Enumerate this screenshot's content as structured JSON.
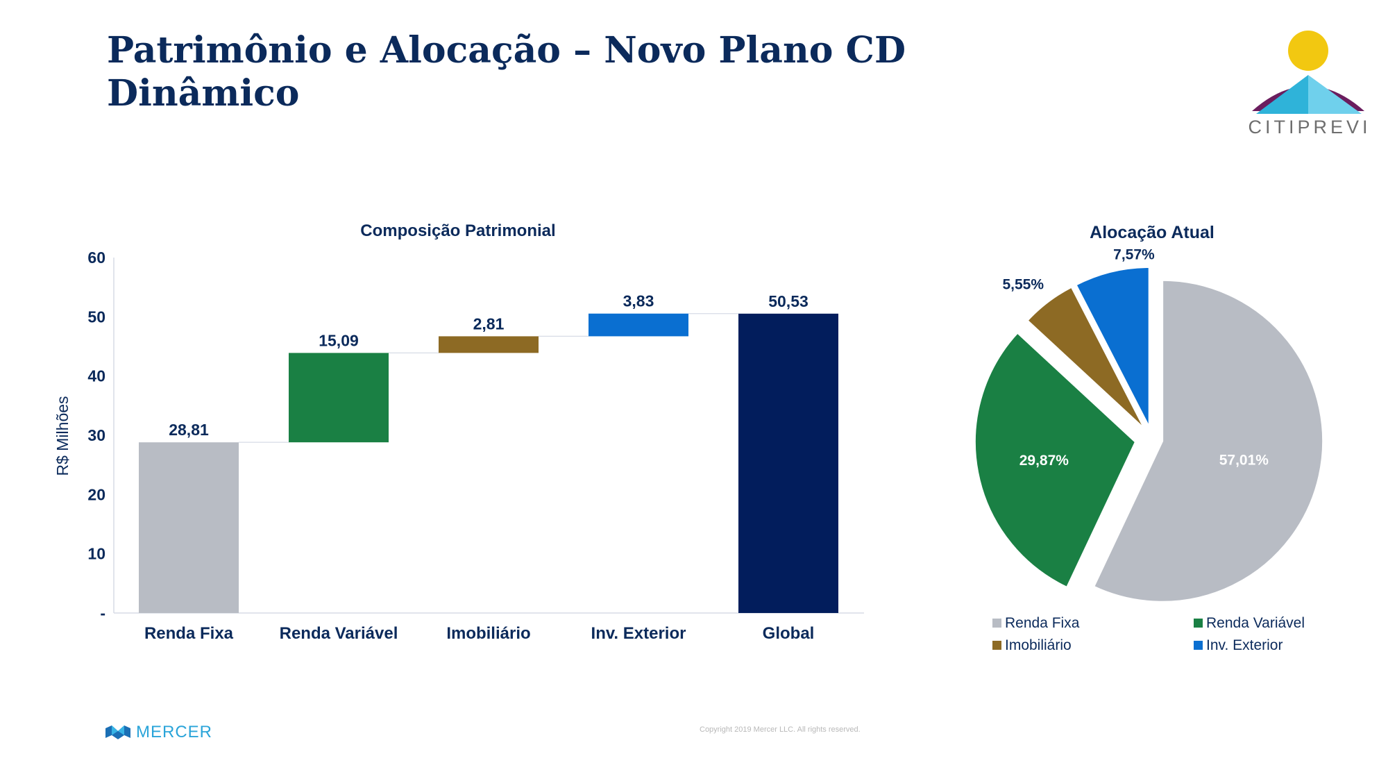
{
  "slide": {
    "title_line1": "Patrimônio e Alocação – Novo Plano CD",
    "title_line2": "Dinâmico",
    "logo_text": "CITIPREVI",
    "footer_brand": "MERCER",
    "copyright": "Copyright 2019 Mercer LLC. All rights reserved."
  },
  "colors": {
    "title": "#0b2a5b",
    "renda_fixa": "#b8bcc4",
    "renda_variavel": "#1a8044",
    "imobiliario": "#8d6a24",
    "inv_exterior": "#0a6fd1",
    "global": "#021d5c"
  },
  "chart_data": [
    {
      "type": "bar",
      "subtype": "waterfall",
      "title": "Composição Patrimonial",
      "ylabel": "R$ Milhões",
      "xlabel": "",
      "ylim": [
        0,
        60
      ],
      "yticks": [
        "-",
        "10",
        "20",
        "30",
        "40",
        "50",
        "60"
      ],
      "categories": [
        "Renda Fixa",
        "Renda Variável",
        "Imobiliário",
        "Inv. Exterior",
        "Global"
      ],
      "values": [
        28.81,
        15.09,
        2.81,
        3.83,
        50.53
      ],
      "labels": [
        "28,81",
        "15,09",
        "2,81",
        "3,83",
        "50,53"
      ],
      "is_total": [
        false,
        false,
        false,
        false,
        true
      ],
      "colors": [
        "#b8bcc4",
        "#1a8044",
        "#8d6a24",
        "#0a6fd1",
        "#021d5c"
      ],
      "grid": false
    },
    {
      "type": "pie",
      "title": "Alocação Atual",
      "categories": [
        "Renda Fixa",
        "Renda Variável",
        "Imobiliário",
        "Inv. Exterior"
      ],
      "values": [
        57.01,
        29.87,
        5.55,
        7.57
      ],
      "labels": [
        "57,01%",
        "29,87%",
        "5,55%",
        "7,57%"
      ],
      "colors": [
        "#b8bcc4",
        "#1a8044",
        "#8d6a24",
        "#0a6fd1"
      ],
      "legend_position": "bottom"
    }
  ]
}
